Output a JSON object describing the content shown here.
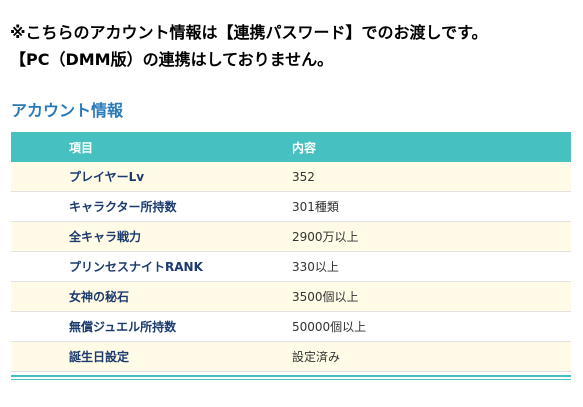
{
  "notice": {
    "line1": "※こちらのアカウント情報は【連携パスワード】でのお渡しです。",
    "line2": "【PC（DMM版）の連携はしておりません。"
  },
  "section": {
    "title": "アカウント情報"
  },
  "table": {
    "headers": [
      "項目",
      "内容"
    ],
    "rows": [
      {
        "item": "プレイヤーLv",
        "value": "352"
      },
      {
        "item": "キャラクター所持数",
        "value": "301種類"
      },
      {
        "item": "全キャラ戦力",
        "value": "2900万以上"
      },
      {
        "item": "プリンセスナイトRANK",
        "value": "330以上"
      },
      {
        "item": "女神の秘石",
        "value": "3500個以上"
      },
      {
        "item": "無償ジュエル所持数",
        "value": "50000個以上"
      },
      {
        "item": "誕生日設定",
        "value": "設定済み"
      }
    ]
  },
  "colors": {
    "title": "#2a7ab8",
    "header_bg": "#46c0c0",
    "odd_row_bg": "#fffbe6",
    "item_text": "#1b3a6e"
  }
}
